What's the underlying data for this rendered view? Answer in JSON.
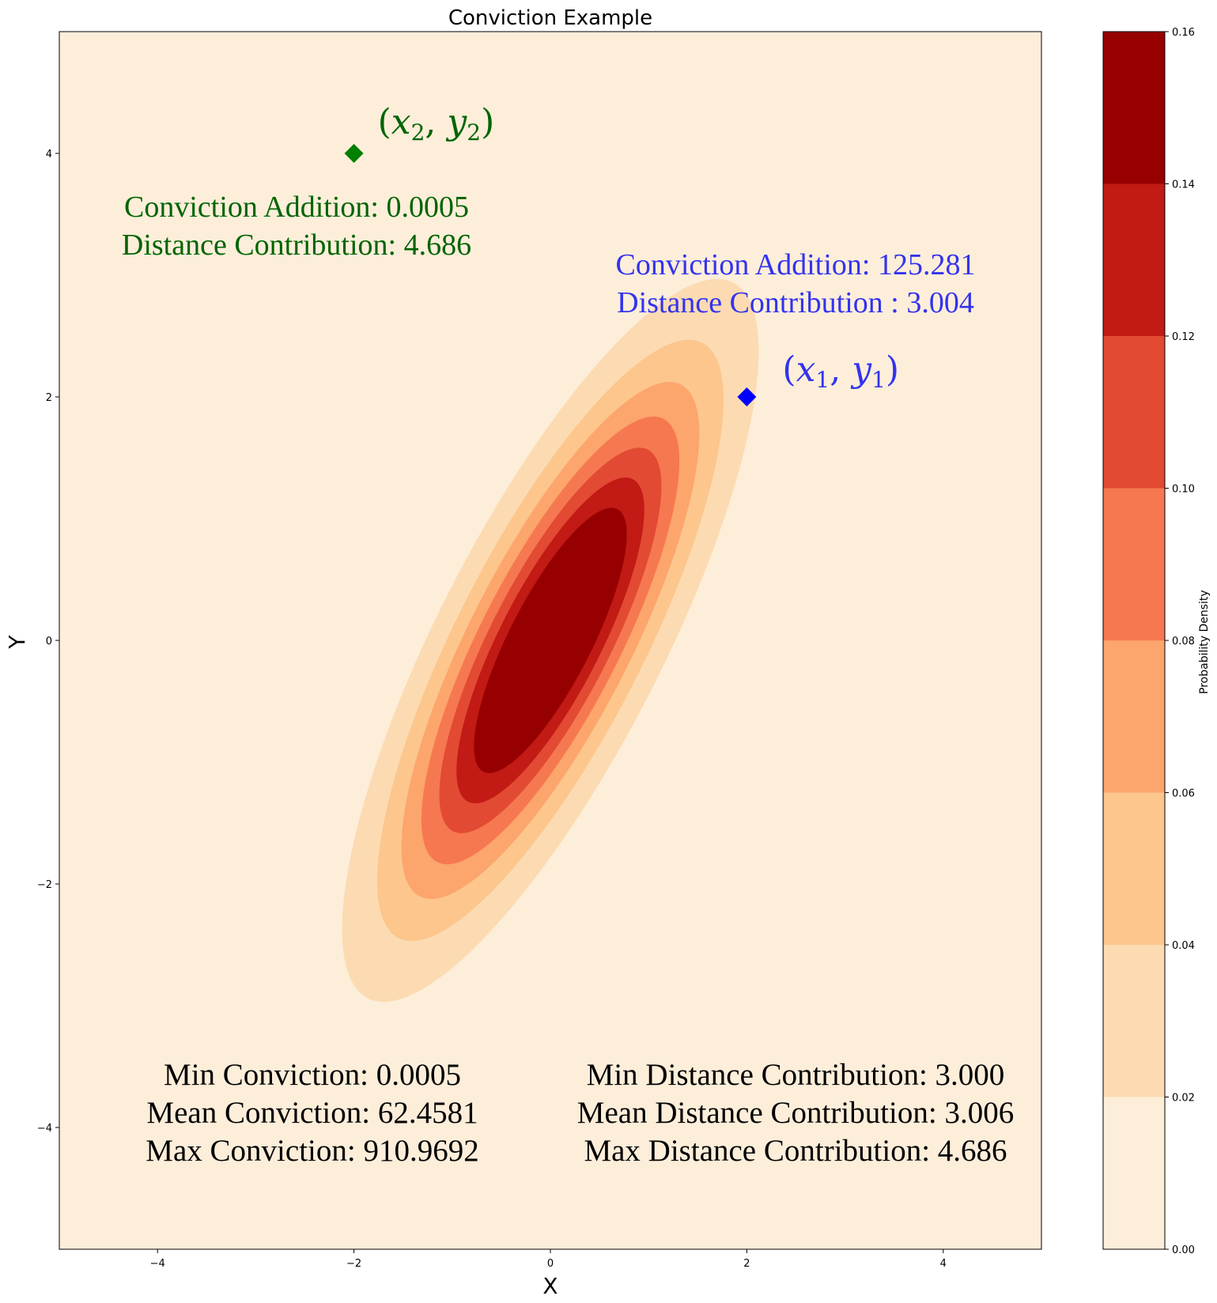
{
  "chart_data": {
    "type": "contour",
    "title": "Conviction Example",
    "xlabel": "X",
    "ylabel": "Y",
    "xlim": [
      -5,
      5
    ],
    "ylim": [
      -5,
      5
    ],
    "x_ticks": [
      -4,
      -2,
      0,
      2,
      4
    ],
    "x_tick_labels": [
      "−4",
      "−2",
      "0",
      "2",
      "4"
    ],
    "y_ticks": [
      -4,
      -2,
      0,
      2,
      4
    ],
    "y_tick_labels": [
      "−4",
      "−2",
      "0",
      "2",
      "4"
    ],
    "grid": false,
    "density": {
      "distribution": "bivariate normal",
      "mean": [
        0,
        0
      ],
      "sigma_x": 1.0,
      "sigma_y": 1.4,
      "correlation": 0.8
    },
    "contour_levels": [
      0.0,
      0.02,
      0.04,
      0.06,
      0.08,
      0.1,
      0.12,
      0.14,
      0.16
    ],
    "contour_colors": [
      "#fdeeda",
      "#fcdbb2",
      "#fcc68d",
      "#fca56c",
      "#f67850",
      "#e24a33",
      "#c21a14",
      "#970000"
    ],
    "colorbar": {
      "label": "Probability Density",
      "ticks": [
        0.0,
        0.02,
        0.04,
        0.06,
        0.08,
        0.1,
        0.12,
        0.14,
        0.16
      ],
      "tick_labels": [
        "0.00",
        "0.02",
        "0.04",
        "0.06",
        "0.08",
        "0.10",
        "0.12",
        "0.14",
        "0.16"
      ]
    },
    "points": [
      {
        "x": 2,
        "y": 2,
        "color": "#0000ff",
        "marker": "diamond",
        "label_var": "x",
        "label_var2": "y",
        "label_sub": "1",
        "annotation_lines": [
          "Conviction Addition: 125.281",
          "Distance Contribution : 3.004"
        ],
        "annotation_color": "#3333ee"
      },
      {
        "x": -2,
        "y": 4,
        "color": "#008000",
        "marker": "diamond",
        "label_var": "x",
        "label_var2": "y",
        "label_sub": "2",
        "annotation_lines": [
          "Conviction Addition: 0.0005",
          "Distance Contribution: 4.686"
        ],
        "annotation_color": "#006400"
      }
    ],
    "summary_left": [
      "Min Conviction: 0.0005",
      "Mean Conviction: 62.4581",
      "Max Conviction: 910.9692"
    ],
    "summary_right": [
      "Min Distance Contribution:  3.000",
      "Mean Distance Contribution: 3.006",
      "Max Distance Contribution: 4.686"
    ]
  }
}
